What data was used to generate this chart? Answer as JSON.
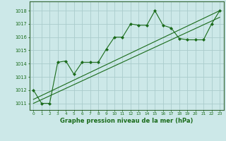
{
  "xlabel": "Graphe pression niveau de la mer (hPa)",
  "bg_color": "#cce8e8",
  "grid_color": "#aacccc",
  "line_color": "#1a6b1a",
  "ylim": [
    1010.5,
    1018.7
  ],
  "xlim": [
    -0.5,
    23.5
  ],
  "yticks": [
    1011,
    1012,
    1013,
    1014,
    1015,
    1016,
    1017,
    1018
  ],
  "xticks": [
    0,
    1,
    2,
    3,
    4,
    5,
    6,
    7,
    8,
    9,
    10,
    11,
    12,
    13,
    14,
    15,
    16,
    17,
    18,
    19,
    20,
    21,
    22,
    23
  ],
  "series1_x": [
    0,
    1,
    2,
    3,
    4,
    5,
    6,
    7,
    8,
    9,
    10,
    11,
    12,
    13,
    14,
    15,
    16,
    17,
    18,
    19,
    20,
    21,
    22,
    23
  ],
  "series1_y": [
    1012.0,
    1011.0,
    1011.0,
    1014.1,
    1014.2,
    1013.2,
    1014.1,
    1014.1,
    1014.1,
    1015.1,
    1016.0,
    1016.0,
    1017.0,
    1016.9,
    1016.9,
    1018.0,
    1016.9,
    1016.7,
    1015.9,
    1015.8,
    1015.8,
    1015.8,
    1017.0,
    1018.0
  ],
  "series2_x": [
    0,
    23
  ],
  "series2_y": [
    1011.0,
    1017.5
  ],
  "series3_x": [
    0,
    23
  ],
  "series3_y": [
    1011.3,
    1018.0
  ],
  "spine_color": "#336633"
}
